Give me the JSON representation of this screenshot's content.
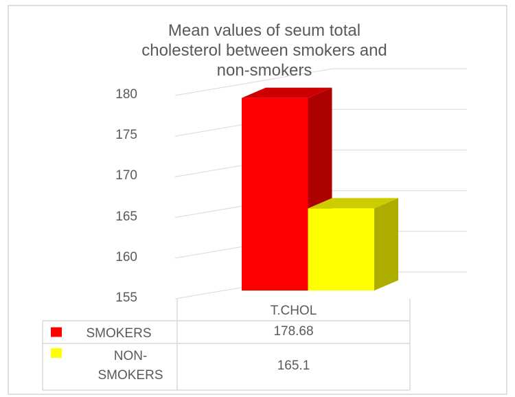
{
  "chart_data": {
    "type": "bar3d",
    "title": "Mean values of seum total cholesterol between smokers and non-smokers",
    "categories": [
      "T.CHOL"
    ],
    "series": [
      {
        "name": "SMOKERS",
        "color": "#ff0000",
        "values": [
          178.68
        ]
      },
      {
        "name": "NON-SMOKERS",
        "color": "#ffff00",
        "values": [
          165.1
        ]
      }
    ],
    "ylim": [
      155,
      180
    ],
    "yticks": [
      155,
      160,
      165,
      170,
      175,
      180
    ],
    "grid": true,
    "data_table": true
  }
}
